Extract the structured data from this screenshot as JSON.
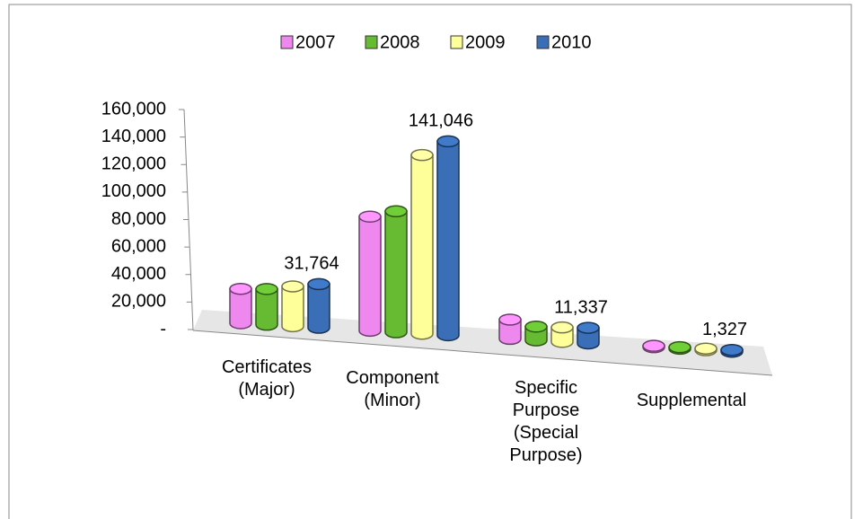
{
  "chart_data": {
    "type": "bar3d",
    "categories": [
      "Certificates (Major)",
      "Component (Minor)",
      "Specific Purpose (Special Purpose)",
      "Supplemental"
    ],
    "series": [
      {
        "name": "2007",
        "color": "#ee88ee",
        "values": [
          25000,
          83000,
          14000,
          1000
        ]
      },
      {
        "name": "2008",
        "color": "#66bb33",
        "values": [
          26000,
          88000,
          10000,
          1100
        ]
      },
      {
        "name": "2009",
        "color": "#ffff99",
        "values": [
          29000,
          130000,
          10500,
          1200
        ]
      },
      {
        "name": "2010",
        "color": "#3a6fb8",
        "values": [
          31764,
          141046,
          11337,
          1327
        ],
        "value_labels": [
          "31,764",
          "141,046",
          "11,337",
          "1,327"
        ]
      }
    ],
    "ylim": [
      0,
      160000
    ],
    "yticks": [
      {
        "value": 0,
        "label": "-"
      },
      {
        "value": 20000,
        "label": "20,000"
      },
      {
        "value": 40000,
        "label": "40,000"
      },
      {
        "value": 60000,
        "label": "60,000"
      },
      {
        "value": 80000,
        "label": "80,000"
      },
      {
        "value": 100000,
        "label": "100,000"
      },
      {
        "value": 120000,
        "label": "120,000"
      },
      {
        "value": 140000,
        "label": "140,000"
      },
      {
        "value": 160000,
        "label": "160,000"
      }
    ],
    "legend": "top"
  }
}
